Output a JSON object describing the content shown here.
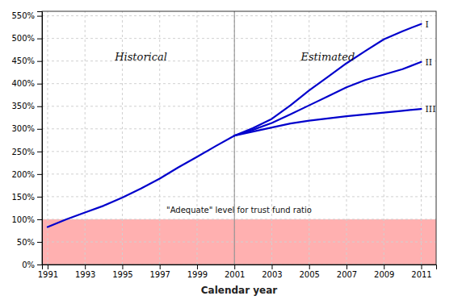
{
  "chart_data": {
    "type": "line",
    "x_label": "Calendar year",
    "x": [
      1991,
      1992,
      1993,
      1994,
      1995,
      1996,
      1997,
      1998,
      1999,
      2000,
      2001,
      2002,
      2003,
      2004,
      2005,
      2006,
      2007,
      2008,
      2009,
      2010,
      2011
    ],
    "series": [
      {
        "name": "Historical",
        "color": "#0000CC",
        "values": [
          83,
          100,
          115,
          130,
          148,
          168,
          190,
          215,
          238,
          262,
          285,
          null,
          null,
          null,
          null,
          null,
          null,
          null,
          null,
          null,
          null
        ]
      },
      {
        "name": "I",
        "color": "#0000CC",
        "values": [
          null,
          null,
          null,
          null,
          null,
          null,
          null,
          null,
          null,
          null,
          285,
          302,
          322,
          352,
          385,
          415,
          445,
          472,
          498,
          516,
          532
        ]
      },
      {
        "name": "II",
        "color": "#0000CC",
        "values": [
          null,
          null,
          null,
          null,
          null,
          null,
          null,
          null,
          null,
          null,
          285,
          298,
          313,
          332,
          352,
          372,
          392,
          408,
          420,
          432,
          448
        ]
      },
      {
        "name": "III",
        "color": "#0000CC",
        "values": [
          null,
          null,
          null,
          null,
          null,
          null,
          null,
          null,
          null,
          null,
          285,
          294,
          303,
          312,
          318,
          323,
          328,
          332,
          336,
          340,
          344
        ]
      }
    ],
    "xlim": [
      1990.7,
      2011.8
    ],
    "xticks": [
      1991,
      1993,
      1995,
      1997,
      1999,
      2001,
      2003,
      2005,
      2007,
      2009,
      2011
    ],
    "ylim": [
      0,
      560
    ],
    "yticks": [
      {
        "value": 0,
        "label": "0%"
      },
      {
        "value": 50,
        "label": "50%"
      },
      {
        "value": 100,
        "label": "100%"
      },
      {
        "value": 150,
        "label": "150%"
      },
      {
        "value": 200,
        "label": "200%"
      },
      {
        "value": 250,
        "label": "250%"
      },
      {
        "value": 300,
        "label": "300%"
      },
      {
        "value": 350,
        "label": "350%"
      },
      {
        "value": 400,
        "label": "400%"
      },
      {
        "value": 450,
        "label": "450%"
      },
      {
        "value": 500,
        "label": "500%"
      },
      {
        "value": 550,
        "label": "550%"
      }
    ],
    "grid": true,
    "divider_x": 2001,
    "shaded_band": {
      "from": 0,
      "to": 100,
      "color": "#FFB0B0",
      "label": "\"Adequate\" level for trust fund ratio"
    },
    "annotations": [
      "Estimated"
    ]
  }
}
